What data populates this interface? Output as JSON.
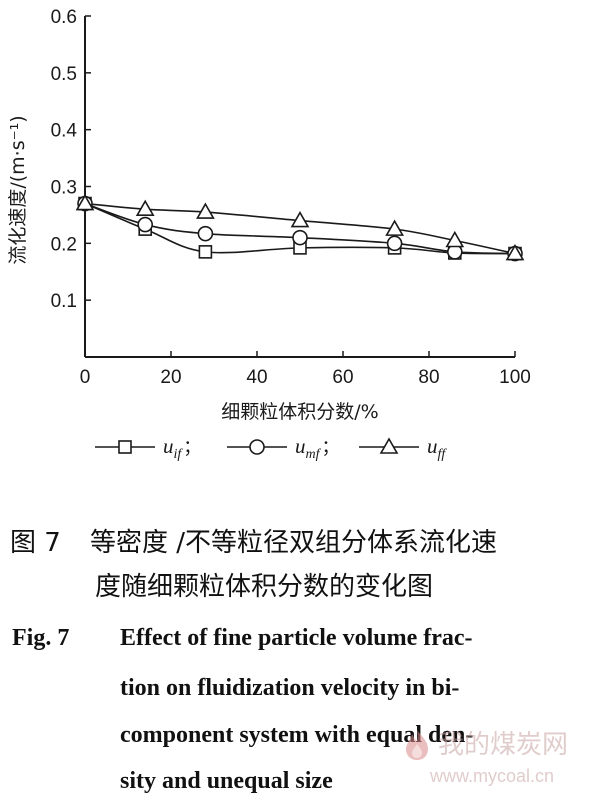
{
  "chart_data": {
    "type": "line",
    "xlabel": "细颗粒体积分数/%",
    "ylabel": "流化速度/(m·s⁻¹)",
    "xlim": [
      0,
      100
    ],
    "ylim": [
      0,
      0.6
    ],
    "x_ticks": [
      0,
      20,
      40,
      60,
      80,
      100
    ],
    "y_ticks": [
      0.1,
      0.2,
      0.3,
      0.4,
      0.5,
      0.6
    ],
    "x_tick_labels": [
      "0",
      "20",
      "40",
      "60",
      "80",
      "100"
    ],
    "y_tick_labels": [
      "0.1",
      "0.2",
      "0.3",
      "0.4",
      "0.5",
      "0.6"
    ],
    "series": [
      {
        "name": "u_if",
        "marker": "square",
        "x": [
          0,
          14,
          28,
          50,
          72,
          86,
          100
        ],
        "y": [
          0.27,
          0.225,
          0.185,
          0.192,
          0.192,
          0.183,
          0.182
        ]
      },
      {
        "name": "u_mf",
        "marker": "circle",
        "x": [
          0,
          14,
          28,
          50,
          72,
          86,
          100
        ],
        "y": [
          0.27,
          0.233,
          0.217,
          0.21,
          0.2,
          0.185,
          0.182
        ]
      },
      {
        "name": "u_ff",
        "marker": "triangle",
        "x": [
          0,
          14,
          28,
          50,
          72,
          86,
          100
        ],
        "y": [
          0.27,
          0.26,
          0.255,
          0.24,
          0.225,
          0.205,
          0.182
        ]
      }
    ],
    "legend": {
      "placement": "bottom",
      "entries": [
        {
          "base": "u",
          "sub": "if",
          "sep": "；"
        },
        {
          "base": "u",
          "sub": "mf",
          "sep": "；"
        },
        {
          "base": "u",
          "sub": "ff",
          "sep": ""
        }
      ]
    },
    "grid": false
  },
  "caption": {
    "cn_fig_no": "图 7",
    "cn_line1": "等密度 /不等粒径双组分体系流化速",
    "cn_line2": "度随细颗粒体积分数的变化图",
    "en_fig_no": "Fig. 7",
    "en_lines": [
      "Effect of fine particle volume frac-",
      "tion on fluidization velocity in bi-",
      "component system with equal den-",
      "sity and unequal size"
    ]
  },
  "watermark": {
    "cn": "我的煤炭网",
    "url": "www.mycoal.cn"
  },
  "colors": {
    "ink": "#1a1a1a",
    "watermark": "#c9a3a3"
  }
}
